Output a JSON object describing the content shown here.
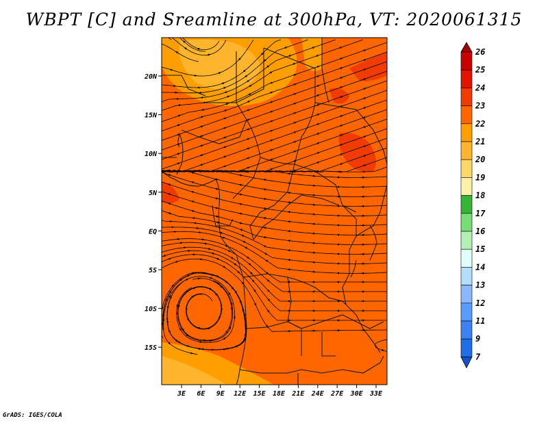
{
  "title": "WBPT [C] and Sreamline at 300hPa, VT: 2020061315",
  "credit": "GrADS: IGES/COLA",
  "map": {
    "lat_labels": [
      "20N",
      "15N",
      "10N",
      "5N",
      "EQ",
      "5S",
      "10S",
      "15S"
    ],
    "lon_labels": [
      "3E",
      "6E",
      "9E",
      "12E",
      "15E",
      "18E",
      "21E",
      "24E",
      "27E",
      "30E",
      "33E"
    ],
    "base_color": "#ff6600"
  },
  "colorbar": {
    "labels": [
      "26",
      "25",
      "24",
      "23",
      "22",
      "21",
      "20",
      "19",
      "18",
      "17",
      "16",
      "15",
      "14",
      "13",
      "12",
      "11",
      "9",
      "7"
    ],
    "colors": [
      "#a50000",
      "#c80000",
      "#e11400",
      "#f03c00",
      "#ff6600",
      "#ff9e00",
      "#ffb42d",
      "#ffd869",
      "#fff0aa",
      "#37b437",
      "#78dc78",
      "#b4f0b4",
      "#e1fffa",
      "#b4dcff",
      "#8ab8ff",
      "#5a9bff",
      "#3c82f0",
      "#1e6ee6",
      "#1450d2"
    ]
  }
}
